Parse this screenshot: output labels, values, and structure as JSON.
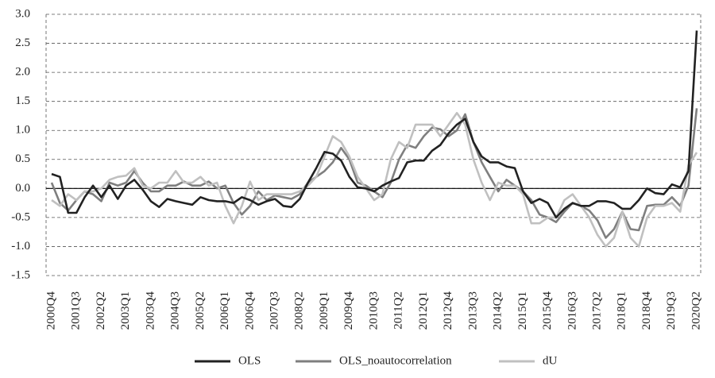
{
  "chart_data": {
    "type": "line",
    "categories": [
      "2000Q4",
      null,
      null,
      "2001Q3",
      null,
      null,
      "2002Q2",
      null,
      null,
      "2003Q1",
      null,
      null,
      "2003Q4",
      null,
      null,
      "2004Q3",
      null,
      null,
      "2005Q2",
      null,
      null,
      "2006Q1",
      null,
      null,
      "2006Q4",
      null,
      null,
      "2007Q3",
      null,
      null,
      "2008Q2",
      null,
      null,
      "2009Q1",
      null,
      null,
      "2009Q4",
      null,
      null,
      "2010Q3",
      null,
      null,
      "2011Q2",
      null,
      null,
      "2012Q1",
      null,
      null,
      "2012Q4",
      null,
      null,
      "2013Q3",
      null,
      null,
      "2014Q2",
      null,
      null,
      "2015Q1",
      null,
      null,
      "2015Q4",
      null,
      null,
      "2016Q3",
      null,
      null,
      "2017Q2",
      null,
      null,
      "2018Q1",
      null,
      null,
      "2018Q4",
      null,
      null,
      "2019Q3",
      null,
      null,
      "2020Q2"
    ],
    "series": [
      {
        "name": "OLS",
        "color": "#222222",
        "values": [
          0.25,
          0.2,
          -0.42,
          -0.42,
          -0.15,
          0.05,
          -0.15,
          0.05,
          -0.18,
          0.05,
          0.15,
          -0.02,
          -0.22,
          -0.32,
          -0.18,
          -0.22,
          -0.25,
          -0.28,
          -0.15,
          -0.2,
          -0.22,
          -0.22,
          -0.25,
          -0.15,
          -0.2,
          -0.28,
          -0.22,
          -0.18,
          -0.3,
          -0.32,
          -0.18,
          0.1,
          0.35,
          0.63,
          0.6,
          0.48,
          0.2,
          0.02,
          0.0,
          -0.05,
          0.05,
          0.12,
          0.18,
          0.45,
          0.48,
          0.48,
          0.65,
          0.75,
          0.95,
          1.1,
          1.2,
          0.8,
          0.55,
          0.45,
          0.45,
          0.38,
          0.35,
          -0.05,
          -0.25,
          -0.18,
          -0.25,
          -0.5,
          -0.35,
          -0.25,
          -0.3,
          -0.3,
          -0.22,
          -0.22,
          -0.25,
          -0.35,
          -0.35,
          -0.2,
          0.0,
          -0.08,
          -0.1,
          0.07,
          0.02,
          0.3,
          2.72
        ]
      },
      {
        "name": "OLS_noautocorrelation",
        "color": "#7f7f7f",
        "values": [
          0.1,
          -0.25,
          -0.38,
          -0.2,
          -0.05,
          -0.1,
          -0.22,
          0.1,
          0.05,
          0.1,
          0.3,
          0.1,
          -0.05,
          -0.05,
          0.05,
          0.05,
          0.12,
          0.05,
          0.05,
          0.12,
          0.0,
          0.05,
          -0.25,
          -0.45,
          -0.3,
          -0.05,
          -0.2,
          -0.12,
          -0.15,
          -0.18,
          -0.1,
          0.1,
          0.2,
          0.3,
          0.45,
          0.7,
          0.5,
          0.1,
          0.05,
          -0.05,
          -0.15,
          0.1,
          0.5,
          0.75,
          0.7,
          0.9,
          1.05,
          1.02,
          0.9,
          1.0,
          1.28,
          0.8,
          0.45,
          0.2,
          -0.05,
          0.15,
          0.05,
          -0.05,
          -0.2,
          -0.45,
          -0.5,
          -0.58,
          -0.4,
          -0.25,
          -0.3,
          -0.38,
          -0.55,
          -0.85,
          -0.7,
          -0.4,
          -0.7,
          -0.72,
          -0.3,
          -0.28,
          -0.28,
          -0.15,
          -0.3,
          0.05,
          1.38
        ]
      },
      {
        "name": "dU",
        "color": "#c0c0c0",
        "values": [
          -0.2,
          -0.3,
          -0.1,
          -0.2,
          -0.05,
          -0.05,
          0.0,
          0.15,
          0.2,
          0.22,
          0.35,
          0.05,
          0.0,
          0.1,
          0.1,
          0.3,
          0.1,
          0.1,
          0.2,
          0.05,
          0.1,
          -0.3,
          -0.6,
          -0.3,
          0.12,
          -0.2,
          -0.1,
          -0.1,
          -0.1,
          -0.1,
          -0.05,
          0.05,
          0.2,
          0.55,
          0.9,
          0.8,
          0.55,
          0.2,
          0.0,
          -0.2,
          -0.1,
          0.5,
          0.8,
          0.7,
          1.1,
          1.1,
          1.1,
          0.9,
          1.1,
          1.3,
          1.1,
          0.5,
          0.1,
          -0.2,
          0.1,
          0.05,
          0.05,
          -0.1,
          -0.6,
          -0.6,
          -0.5,
          -0.5,
          -0.2,
          -0.1,
          -0.3,
          -0.5,
          -0.8,
          -1.0,
          -0.85,
          -0.4,
          -0.85,
          -1.0,
          -0.5,
          -0.3,
          -0.3,
          -0.25,
          -0.4,
          0.4,
          0.62
        ]
      }
    ],
    "ylim": [
      -1.5,
      3.0
    ],
    "yticks": [
      {
        "value": 3.0,
        "label": "3.0"
      },
      2.5,
      {
        "value": 2.0,
        "label": "2.0"
      },
      1.5,
      {
        "value": 1.0,
        "label": "1.0"
      },
      0.5,
      {
        "value": 0.0,
        "label": "0.0"
      },
      -0.5,
      {
        "value": -1.0,
        "label": "-1.0"
      },
      -1.5
    ],
    "grid": true,
    "legend": "bottom"
  }
}
